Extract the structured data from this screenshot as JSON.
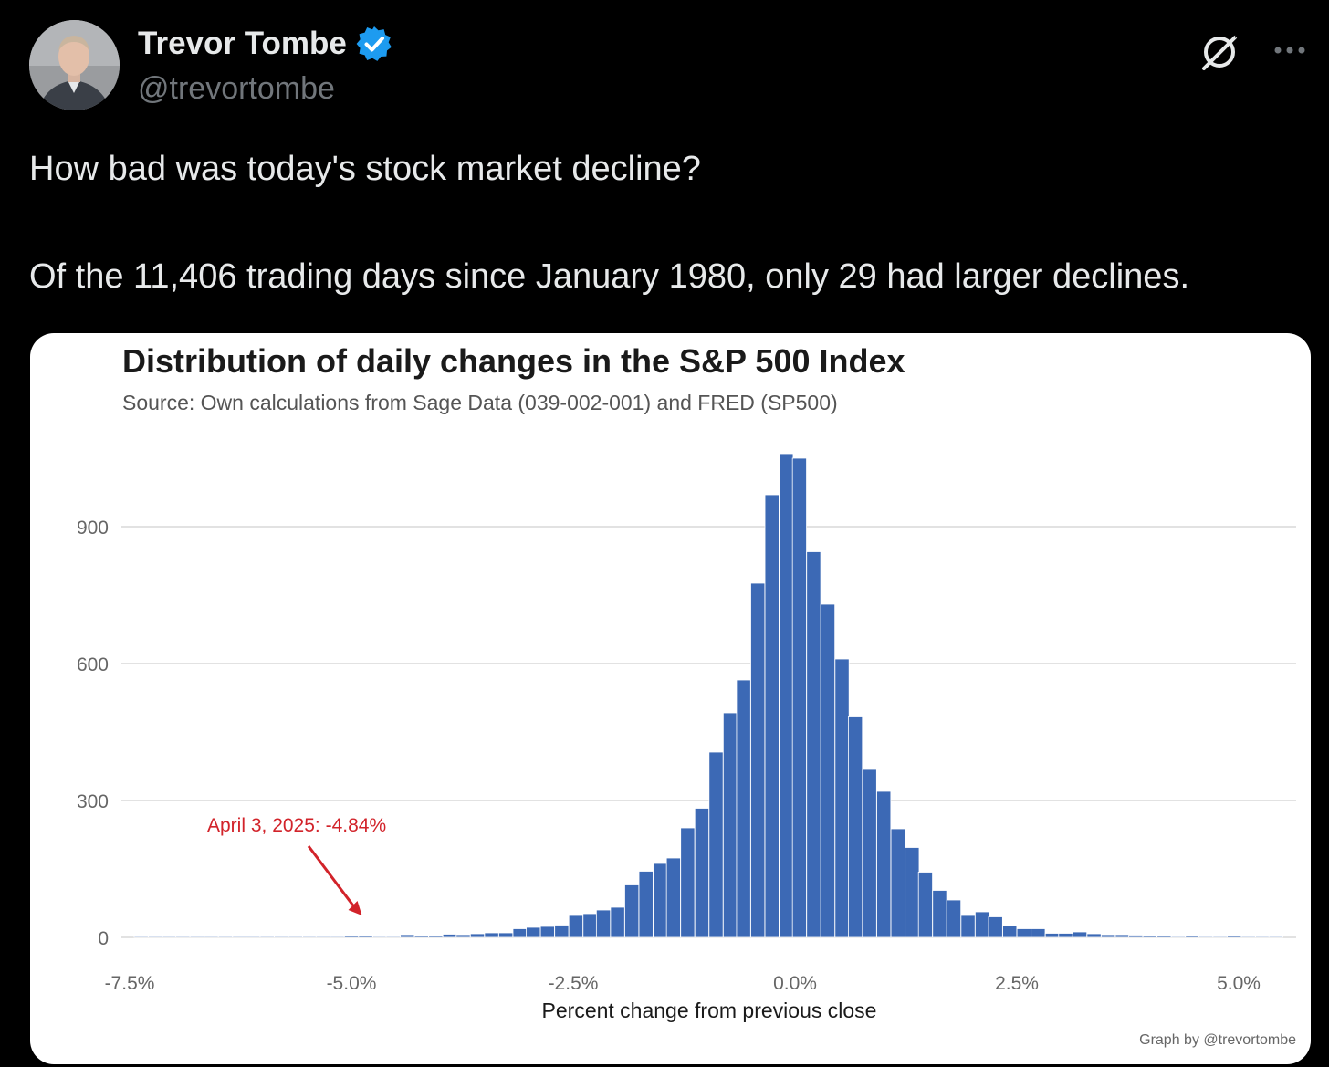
{
  "tweet": {
    "author_name": "Trevor Tombe",
    "handle": "@trevortombe",
    "text_line1": "How bad was today's stock market decline?",
    "text_line2": "Of the 11,406 trading days since January 1980, only 29 had larger declines."
  },
  "icons": {
    "verified": "verified-badge-icon",
    "grok": "grok-icon",
    "more": "more-icon"
  },
  "colors": {
    "bar": "#3c69b5",
    "annotation": "#d2232a",
    "verified": "#1d9bf0"
  },
  "chart_data": {
    "type": "bar",
    "title": "Distribution of daily changes in the S&P 500 Index",
    "subtitle": "Source: Own calculations from Sage Data (039-002-001) and FRED (SP500)",
    "xlabel": "Percent change from previous close",
    "ylabel": "",
    "credit": "Graph by @trevortombe",
    "xlim": [
      -7.5,
      5.5
    ],
    "ylim": [
      0,
      1080
    ],
    "bin_width": 0.158,
    "x_ticks": [
      -7.5,
      -5.0,
      -2.5,
      0.0,
      2.5,
      5.0
    ],
    "x_tick_labels": [
      "-7.5%",
      "-5.0%",
      "-2.5%",
      "0.0%",
      "2.5%",
      "5.0%"
    ],
    "y_ticks": [
      0,
      300,
      600,
      900
    ],
    "y_tick_labels": [
      "0",
      "300",
      "600",
      "900"
    ],
    "bins": [
      {
        "x": -7.37,
        "count": 1
      },
      {
        "x": -7.21,
        "count": 1
      },
      {
        "x": -7.05,
        "count": 1
      },
      {
        "x": -6.9,
        "count": 1
      },
      {
        "x": -6.74,
        "count": 2
      },
      {
        "x": -6.58,
        "count": 1
      },
      {
        "x": -6.42,
        "count": 1
      },
      {
        "x": -6.26,
        "count": 1
      },
      {
        "x": -6.11,
        "count": 2
      },
      {
        "x": -5.95,
        "count": 1
      },
      {
        "x": -5.79,
        "count": 2
      },
      {
        "x": -5.63,
        "count": 1
      },
      {
        "x": -5.47,
        "count": 1
      },
      {
        "x": -5.32,
        "count": 2
      },
      {
        "x": -5.16,
        "count": 2
      },
      {
        "x": -5.0,
        "count": 3
      },
      {
        "x": -4.84,
        "count": 3
      },
      {
        "x": -4.68,
        "count": 2
      },
      {
        "x": -4.53,
        "count": 2
      },
      {
        "x": -4.37,
        "count": 6
      },
      {
        "x": -4.21,
        "count": 4
      },
      {
        "x": -4.05,
        "count": 4
      },
      {
        "x": -3.89,
        "count": 7
      },
      {
        "x": -3.74,
        "count": 6
      },
      {
        "x": -3.58,
        "count": 8
      },
      {
        "x": -3.42,
        "count": 10
      },
      {
        "x": -3.26,
        "count": 10
      },
      {
        "x": -3.1,
        "count": 19
      },
      {
        "x": -2.95,
        "count": 22
      },
      {
        "x": -2.79,
        "count": 24
      },
      {
        "x": -2.63,
        "count": 27
      },
      {
        "x": -2.47,
        "count": 48
      },
      {
        "x": -2.31,
        "count": 52
      },
      {
        "x": -2.16,
        "count": 60
      },
      {
        "x": -2.0,
        "count": 66
      },
      {
        "x": -1.84,
        "count": 115
      },
      {
        "x": -1.68,
        "count": 145
      },
      {
        "x": -1.52,
        "count": 162
      },
      {
        "x": -1.37,
        "count": 174
      },
      {
        "x": -1.21,
        "count": 240
      },
      {
        "x": -1.05,
        "count": 283
      },
      {
        "x": -0.89,
        "count": 406
      },
      {
        "x": -0.73,
        "count": 492
      },
      {
        "x": -0.58,
        "count": 564
      },
      {
        "x": -0.42,
        "count": 776
      },
      {
        "x": -0.26,
        "count": 970
      },
      {
        "x": -0.1,
        "count": 1060
      },
      {
        "x": 0.05,
        "count": 1050
      },
      {
        "x": 0.21,
        "count": 845
      },
      {
        "x": 0.37,
        "count": 730
      },
      {
        "x": 0.53,
        "count": 610
      },
      {
        "x": 0.68,
        "count": 485
      },
      {
        "x": 0.84,
        "count": 368
      },
      {
        "x": 1.0,
        "count": 320
      },
      {
        "x": 1.16,
        "count": 238
      },
      {
        "x": 1.32,
        "count": 197
      },
      {
        "x": 1.47,
        "count": 143
      },
      {
        "x": 1.63,
        "count": 103
      },
      {
        "x": 1.79,
        "count": 82
      },
      {
        "x": 1.95,
        "count": 48
      },
      {
        "x": 2.11,
        "count": 56
      },
      {
        "x": 2.26,
        "count": 45
      },
      {
        "x": 2.42,
        "count": 26
      },
      {
        "x": 2.58,
        "count": 19
      },
      {
        "x": 2.74,
        "count": 19
      },
      {
        "x": 2.9,
        "count": 9
      },
      {
        "x": 3.05,
        "count": 9
      },
      {
        "x": 3.21,
        "count": 12
      },
      {
        "x": 3.37,
        "count": 8
      },
      {
        "x": 3.53,
        "count": 6
      },
      {
        "x": 3.69,
        "count": 6
      },
      {
        "x": 3.84,
        "count": 5
      },
      {
        "x": 4.0,
        "count": 4
      },
      {
        "x": 4.16,
        "count": 3
      },
      {
        "x": 4.32,
        "count": 2
      },
      {
        "x": 4.48,
        "count": 3
      },
      {
        "x": 4.63,
        "count": 1
      },
      {
        "x": 4.79,
        "count": 2
      },
      {
        "x": 4.95,
        "count": 3
      },
      {
        "x": 5.11,
        "count": 2
      },
      {
        "x": 5.27,
        "count": 1
      },
      {
        "x": 5.42,
        "count": 1
      }
    ],
    "annotation": {
      "text": "April 3, 2025: -4.84%",
      "x": -4.84,
      "color": "#d2232a"
    }
  }
}
